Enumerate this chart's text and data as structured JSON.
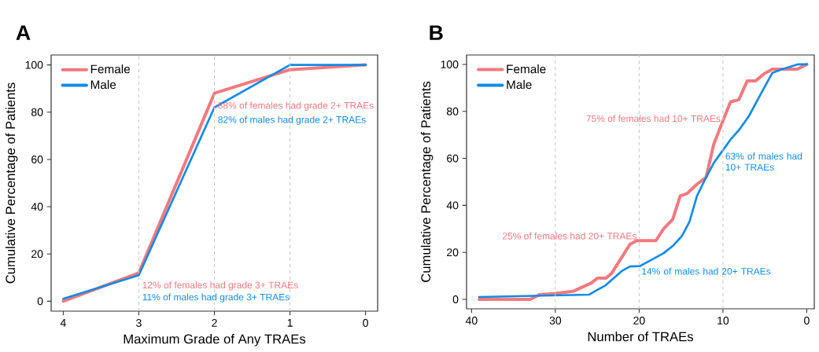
{
  "chart_data": [
    {
      "type": "line",
      "title": "A",
      "xlabel": "Maximum Grade of Any TRAEs",
      "ylabel": "Cumulative Percentage of Patients",
      "x": [
        4,
        3,
        2,
        1,
        0
      ],
      "series": [
        {
          "name": "Female",
          "color": "#f2797f",
          "values": [
            0,
            12,
            88,
            98,
            100
          ]
        },
        {
          "name": "Male",
          "color": "#128ae6",
          "values": [
            1,
            11,
            82,
            100,
            100
          ]
        }
      ],
      "xlim": [
        4.16,
        -0.16
      ],
      "ylim": [
        -4.2,
        104.2
      ],
      "xticks": [
        4,
        3,
        2,
        1,
        0
      ],
      "yticks": [
        0,
        20,
        40,
        60,
        80,
        100
      ],
      "ref_lines": [
        {
          "axis": "x",
          "value": 3,
          "color": "#c8c8c8",
          "line_style": "dashed"
        },
        {
          "axis": "x",
          "value": 2,
          "color": "#c8c8c8",
          "line_style": "dashed"
        },
        {
          "axis": "x",
          "value": 1,
          "color": "#c8c8c8",
          "line_style": "dashed"
        }
      ],
      "annotations": [
        {
          "text": "88% of females had grade 2+ TRAEs",
          "x": 2,
          "y": 88
        },
        {
          "text": "82% of males had grade 2+ TRAEs",
          "x": 2,
          "y": 82
        },
        {
          "text": "12% of females had grade 3+ TRAEs",
          "x": 3,
          "y": 12
        },
        {
          "text": "11% of males had grade 3+ TRAEs",
          "x": 3,
          "y": 11
        }
      ],
      "legend": "top left",
      "grid": false,
      "marker": "none"
    },
    {
      "type": "line",
      "title": "B",
      "xlabel": "Number of TRAEs",
      "ylabel": "Cumulative Percentage of Patients",
      "series": [
        {
          "name": "Female",
          "color": "#f2797f",
          "x": [
            39.1,
            33,
            31.9,
            30,
            27.9,
            25.7,
            25,
            24,
            23.3,
            21.1,
            20.3,
            18,
            17.1,
            16,
            15.1,
            14.3,
            13.1,
            12,
            11.1,
            10,
            9.1,
            8.1,
            7.1,
            6.1,
            5.1,
            4.1,
            2,
            1.1,
            0
          ],
          "values": [
            0,
            0,
            2,
            2.5,
            3.4,
            7,
            9,
            9,
            11,
            23.4,
            25,
            25,
            30,
            34,
            44,
            45,
            49,
            52,
            66,
            76,
            84,
            85,
            93,
            93,
            96,
            98,
            98,
            98,
            100
          ]
        },
        {
          "name": "Male",
          "color": "#128ae6",
          "x": [
            39.1,
            26,
            24,
            22.1,
            21.1,
            19.9,
            17.1,
            15.9,
            14.9,
            14,
            13.1,
            12,
            11.1,
            10,
            9.1,
            8.1,
            6.9,
            5.7,
            4.1,
            2.9,
            1.1,
            0
          ],
          "values": [
            1,
            2,
            6,
            12,
            14,
            14.2,
            19.6,
            23,
            27,
            33,
            44,
            52,
            58,
            63.5,
            68,
            72,
            78,
            86,
            96.4,
            98,
            100,
            100
          ]
        }
      ],
      "xlim": [
        40.6,
        -0.9
      ],
      "ylim": [
        -4,
        104
      ],
      "xticks": [
        40,
        30,
        20,
        10,
        0
      ],
      "yticks": [
        0,
        20,
        40,
        60,
        80,
        100
      ],
      "ref_lines": [
        {
          "axis": "x",
          "value": 30,
          "color": "#c8c8c8",
          "line_style": "dashed"
        },
        {
          "axis": "x",
          "value": 20,
          "color": "#c8c8c8",
          "line_style": "dashed"
        },
        {
          "axis": "x",
          "value": 10,
          "color": "#c8c8c8",
          "line_style": "dashed"
        }
      ],
      "annotations": [
        {
          "text": "75% of females had 10+ TRAEs",
          "x": 10,
          "y": 75
        },
        {
          "text": "63% of males had 10+ TRAEs",
          "x": 10,
          "y": 63
        },
        {
          "text": "25% of females had 20+ TRAEs",
          "x": 20,
          "y": 25
        },
        {
          "text": "14% of males had 20+ TRAEs",
          "x": 20,
          "y": 14
        }
      ],
      "legend": "top left",
      "grid": false,
      "marker": "none"
    }
  ]
}
